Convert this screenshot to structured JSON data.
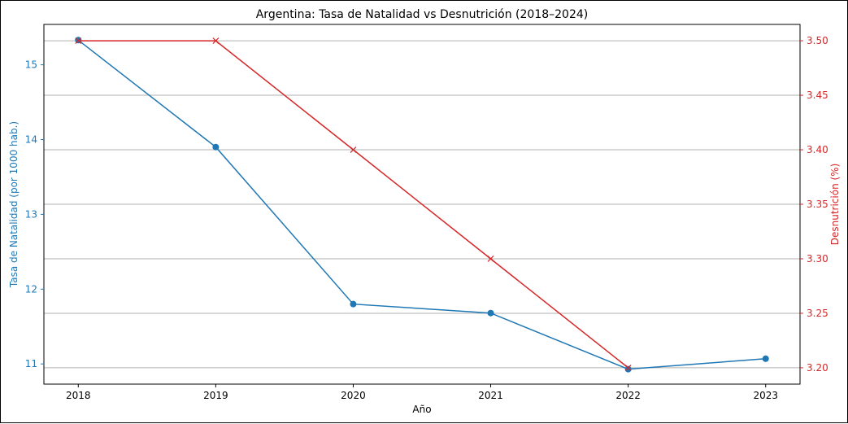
{
  "chart_data": {
    "type": "line",
    "title": "Argentina: Tasa de Natalidad vs Desnutrición (2018–2024)",
    "xlabel": "Año",
    "x": [
      "2018",
      "2019",
      "2020",
      "2021",
      "2022",
      "2023"
    ],
    "xlim": [
      2017.75,
      2023.25
    ],
    "grid": "horizontal, right axis",
    "series": [
      {
        "name": "Tasa de Natalidad",
        "axis": "left",
        "ylabel": "Tasa de Natalidad (por 1000 hab.)",
        "color": "#1f77b4",
        "marker": "circle",
        "x": [
          2018,
          2019,
          2020,
          2021,
          2022,
          2023
        ],
        "values": [
          15.33,
          13.9,
          11.8,
          11.68,
          10.93,
          11.07
        ]
      },
      {
        "name": "Desnutrición",
        "axis": "right",
        "ylabel": "Desnutrición (%)",
        "color": "#d62728",
        "marker": "x",
        "x": [
          2018,
          2019,
          2020,
          2021,
          2022
        ],
        "values": [
          3.5,
          3.5,
          3.4,
          3.3,
          3.2
        ]
      }
    ],
    "left_axis": {
      "ylim": [
        10.73,
        15.54
      ],
      "ticks": [
        11,
        12,
        13,
        14,
        15
      ],
      "tick_labels": [
        "11",
        "12",
        "13",
        "14",
        "15"
      ],
      "color": "#1f77b4"
    },
    "right_axis": {
      "ylim": [
        3.185,
        3.515
      ],
      "ticks": [
        3.2,
        3.25,
        3.3,
        3.35,
        3.4,
        3.45,
        3.5
      ],
      "tick_labels": [
        "3.20",
        "3.25",
        "3.30",
        "3.35",
        "3.40",
        "3.45",
        "3.50"
      ],
      "color": "#d62728"
    }
  }
}
